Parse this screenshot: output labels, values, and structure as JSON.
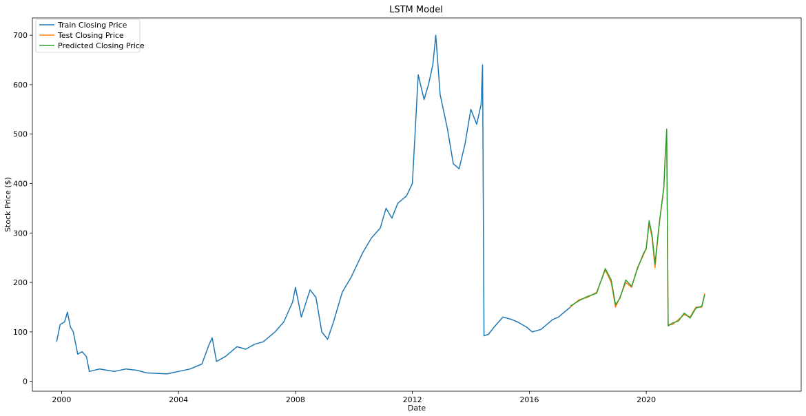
{
  "chart_data": {
    "type": "line",
    "title": "LSTM Model",
    "xlabel": "Date",
    "ylabel": "Stock Price ($)",
    "xlim": [
      1999.0,
      2025.3
    ],
    "ylim": [
      -20,
      735
    ],
    "x_ticks": [
      2000,
      2004,
      2008,
      2012,
      2016,
      2020
    ],
    "x_tick_labels": [
      "2000",
      "2004",
      "2008",
      "2012",
      "2016",
      "2020"
    ],
    "y_ticks": [
      0,
      100,
      200,
      300,
      400,
      500,
      600,
      700
    ],
    "y_tick_labels": [
      "0",
      "100",
      "200",
      "300",
      "400",
      "500",
      "600",
      "700"
    ],
    "grid": false,
    "legend_position": "upper-left",
    "series": [
      {
        "name": "Train Closing Price",
        "color": "#1f77b4",
        "x": [
          1999.83,
          1999.95,
          2000.1,
          2000.2,
          2000.3,
          2000.4,
          2000.55,
          2000.7,
          2000.85,
          2000.95,
          2001.3,
          2001.8,
          2002.2,
          2002.6,
          2002.9,
          2003.3,
          2003.6,
          2004.0,
          2004.4,
          2004.8,
          2005.05,
          2005.15,
          2005.3,
          2005.6,
          2006.0,
          2006.3,
          2006.6,
          2006.9,
          2007.3,
          2007.6,
          2007.9,
          2008.0,
          2008.2,
          2008.5,
          2008.7,
          2008.9,
          2009.1,
          2009.3,
          2009.6,
          2009.9,
          2010.3,
          2010.6,
          2010.9,
          2011.1,
          2011.3,
          2011.5,
          2011.8,
          2012.0,
          2012.2,
          2012.4,
          2012.55,
          2012.7,
          2012.8,
          2012.95,
          2013.2,
          2013.4,
          2013.6,
          2013.8,
          2014.0,
          2014.2,
          2014.35,
          2014.4,
          2014.45,
          2014.6,
          2014.8,
          2015.1,
          2015.4,
          2015.6,
          2015.9,
          2016.1,
          2016.4,
          2016.6,
          2016.8,
          2017.0,
          2017.2,
          2017.4
        ],
        "y": [
          80,
          115,
          120,
          140,
          110,
          100,
          55,
          60,
          50,
          20,
          25,
          20,
          25,
          22,
          17,
          16,
          15,
          20,
          25,
          35,
          75,
          88,
          40,
          50,
          70,
          65,
          75,
          80,
          100,
          120,
          160,
          190,
          130,
          185,
          170,
          100,
          85,
          120,
          180,
          210,
          260,
          290,
          310,
          350,
          330,
          360,
          375,
          400,
          620,
          570,
          600,
          640,
          700,
          580,
          510,
          440,
          430,
          480,
          550,
          520,
          560,
          640,
          92,
          95,
          110,
          130,
          125,
          120,
          110,
          100,
          105,
          115,
          125,
          130,
          140,
          150
        ]
      },
      {
        "name": "Test Closing Price",
        "color": "#ff7f0e",
        "x": [
          2017.4,
          2017.7,
          2018.0,
          2018.3,
          2018.6,
          2018.8,
          2018.95,
          2019.1,
          2019.3,
          2019.5,
          2019.7,
          2019.9,
          2020.0,
          2020.1,
          2020.2,
          2020.3,
          2020.45,
          2020.6,
          2020.65,
          2020.7,
          2020.75,
          2020.9,
          2021.1,
          2021.3,
          2021.5,
          2021.7,
          2021.9,
          2022.0
        ],
        "y": [
          150,
          165,
          170,
          180,
          225,
          200,
          150,
          170,
          200,
          190,
          230,
          255,
          270,
          320,
          290,
          230,
          320,
          390,
          460,
          490,
          115,
          115,
          125,
          135,
          130,
          150,
          150,
          178
        ]
      },
      {
        "name": "Predicted Closing Price",
        "color": "#2ca02c",
        "x": [
          2017.4,
          2017.7,
          2018.0,
          2018.3,
          2018.6,
          2018.8,
          2018.95,
          2019.1,
          2019.3,
          2019.5,
          2019.7,
          2019.9,
          2020.0,
          2020.1,
          2020.2,
          2020.3,
          2020.45,
          2020.6,
          2020.65,
          2020.7,
          2020.75,
          2020.9,
          2021.1,
          2021.3,
          2021.5,
          2021.7,
          2021.9,
          2022.0
        ],
        "y": [
          152,
          163,
          172,
          178,
          228,
          205,
          155,
          168,
          205,
          192,
          228,
          258,
          268,
          325,
          295,
          238,
          322,
          392,
          455,
          510,
          112,
          118,
          122,
          138,
          128,
          148,
          152,
          175
        ]
      }
    ]
  }
}
